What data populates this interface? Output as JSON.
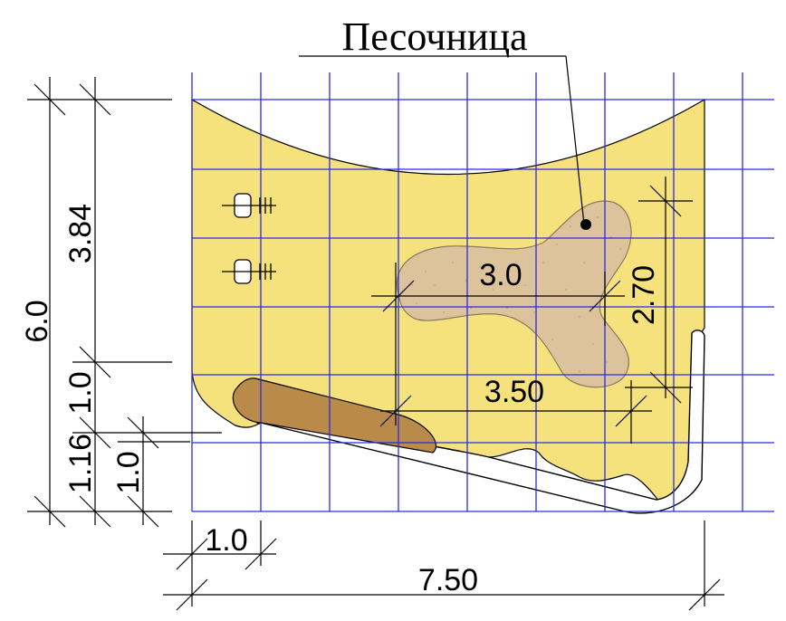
{
  "label": "Песочница",
  "colors": {
    "area": "#F6E27C",
    "grid": "#2A2AE8",
    "sandbox": "#DCC39C",
    "bench": "#B98A4A",
    "line": "#000000"
  },
  "dimensions": {
    "total_height": "6.0",
    "upper_height": "3.84",
    "mid_height": "1.0",
    "lower_height": "1.16",
    "path_width": "1.0",
    "bottom_left_width": "1.0",
    "total_width": "7.50",
    "sandbox_width": "3.0",
    "sandbox_height": "2.70",
    "bench_length": "3.50"
  },
  "icons": [
    "bench-seat-icon",
    "bench-seat-icon"
  ]
}
